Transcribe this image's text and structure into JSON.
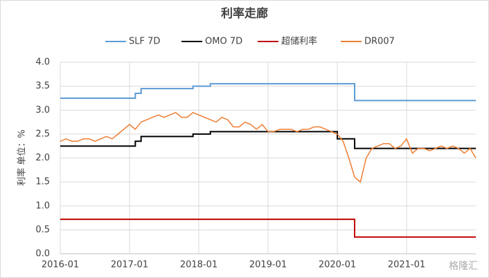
{
  "chart_data": {
    "type": "line",
    "title": "利率走廊",
    "y_label": "利率 单位：%",
    "watermark": "格隆汇",
    "grid": true,
    "legend": "top",
    "xlim": [
      "2016-01",
      "2022-01"
    ],
    "xticks": [
      "2016-01",
      "2017-01",
      "2018-01",
      "2019-01",
      "2020-01",
      "2021-01"
    ],
    "ylim": [
      0,
      4
    ],
    "yticks": [
      {
        "value": 0,
        "label": "0.0"
      },
      {
        "value": 0.5,
        "label": "0.5"
      },
      {
        "value": 1,
        "label": "1.0"
      },
      {
        "value": 1.5,
        "label": "1.5"
      },
      {
        "value": 2,
        "label": "2.0"
      },
      {
        "value": 2.5,
        "label": "2.5"
      },
      {
        "value": 3,
        "label": "3.0"
      },
      {
        "value": 3.5,
        "label": "3.5"
      },
      {
        "value": 4,
        "label": "4.0"
      }
    ],
    "series": [
      {
        "name": "SLF 7D",
        "color": "#5b9bd5",
        "x": [
          "2016-01",
          "2017-02",
          "2017-02",
          "2017-03",
          "2017-03",
          "2017-12",
          "2017-12",
          "2018-03",
          "2018-03",
          "2020-04",
          "2020-04",
          "2022-01"
        ],
        "values": [
          3.25,
          3.25,
          3.35,
          3.35,
          3.45,
          3.45,
          3.5,
          3.5,
          3.55,
          3.55,
          3.2,
          3.2
        ]
      },
      {
        "name": "OMO 7D",
        "color": "#000000",
        "x": [
          "2016-01",
          "2017-02",
          "2017-02",
          "2017-03",
          "2017-03",
          "2017-12",
          "2017-12",
          "2018-03",
          "2018-03",
          "2020-01",
          "2020-01",
          "2020-04",
          "2020-04",
          "2022-01"
        ],
        "values": [
          2.25,
          2.25,
          2.35,
          2.35,
          2.45,
          2.45,
          2.5,
          2.5,
          2.55,
          2.55,
          2.4,
          2.4,
          2.2,
          2.2
        ]
      },
      {
        "name": "超储利率",
        "color": "#c00000",
        "x": [
          "2016-01",
          "2020-04",
          "2020-04",
          "2022-01"
        ],
        "values": [
          0.72,
          0.72,
          0.35,
          0.35
        ]
      },
      {
        "name": "DR007",
        "color": "#ed7d31",
        "x": [
          "2016-01",
          "2016-02",
          "2016-03",
          "2016-04",
          "2016-05",
          "2016-06",
          "2016-07",
          "2016-08",
          "2016-09",
          "2016-10",
          "2016-11",
          "2016-12",
          "2017-01",
          "2017-02",
          "2017-03",
          "2017-04",
          "2017-05",
          "2017-06",
          "2017-07",
          "2017-08",
          "2017-09",
          "2017-10",
          "2017-11",
          "2017-12",
          "2018-01",
          "2018-02",
          "2018-03",
          "2018-04",
          "2018-05",
          "2018-06",
          "2018-07",
          "2018-08",
          "2018-09",
          "2018-10",
          "2018-11",
          "2018-12",
          "2019-01",
          "2019-02",
          "2019-03",
          "2019-04",
          "2019-05",
          "2019-06",
          "2019-07",
          "2019-08",
          "2019-09",
          "2019-10",
          "2019-11",
          "2019-12",
          "2020-01",
          "2020-02",
          "2020-03",
          "2020-04",
          "2020-05",
          "2020-06",
          "2020-07",
          "2020-08",
          "2020-09",
          "2020-10",
          "2020-11",
          "2020-12",
          "2021-01",
          "2021-02",
          "2021-03",
          "2021-04",
          "2021-05",
          "2021-06",
          "2021-07",
          "2021-08",
          "2021-09",
          "2021-10",
          "2021-11",
          "2021-12",
          "2022-01"
        ],
        "values": [
          2.35,
          2.4,
          2.35,
          2.35,
          2.4,
          2.4,
          2.35,
          2.4,
          2.45,
          2.4,
          2.5,
          2.6,
          2.7,
          2.6,
          2.75,
          2.8,
          2.85,
          2.9,
          2.85,
          2.9,
          2.95,
          2.85,
          2.85,
          2.95,
          2.9,
          2.85,
          2.8,
          2.75,
          2.85,
          2.8,
          2.65,
          2.65,
          2.75,
          2.7,
          2.6,
          2.7,
          2.55,
          2.55,
          2.6,
          2.6,
          2.6,
          2.55,
          2.6,
          2.6,
          2.65,
          2.65,
          2.6,
          2.55,
          2.5,
          2.35,
          2.0,
          1.6,
          1.5,
          2.0,
          2.2,
          2.25,
          2.3,
          2.3,
          2.2,
          2.25,
          2.4,
          2.1,
          2.2,
          2.2,
          2.15,
          2.2,
          2.25,
          2.2,
          2.25,
          2.2,
          2.1,
          2.2,
          2.0
        ]
      }
    ]
  }
}
